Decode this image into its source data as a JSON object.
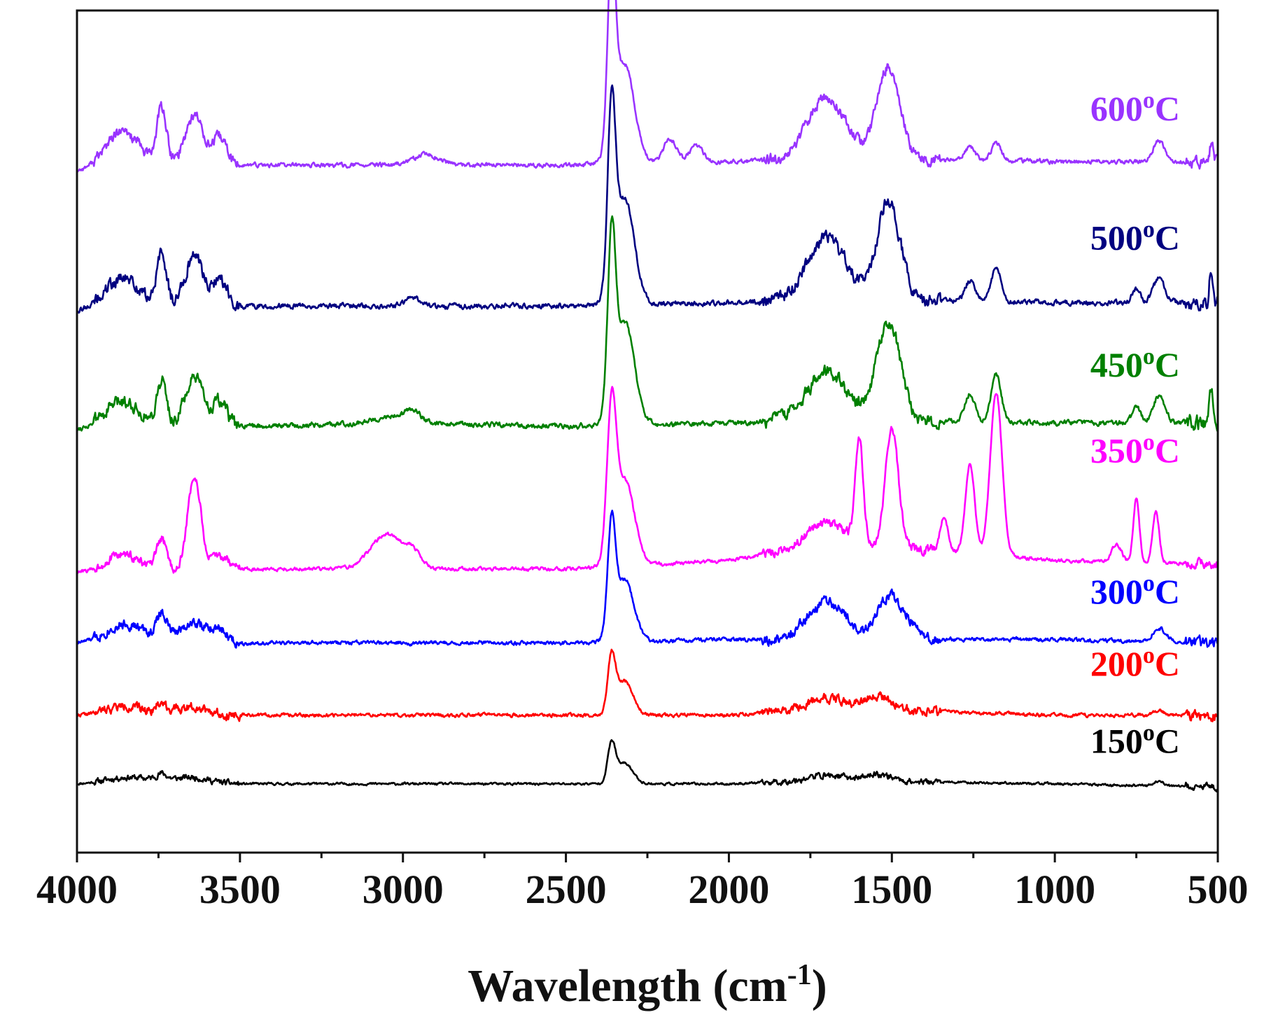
{
  "chart_data": {
    "type": "line",
    "title": "",
    "xlabel": "Wavelength (cm",
    "xlabel_superscript": "-1",
    "xlabel_suffix": ")",
    "ylabel": "",
    "xlim": [
      4000,
      500
    ],
    "x_reversed": true,
    "xticks": [
      4000,
      3500,
      3000,
      2500,
      2000,
      1500,
      1000,
      500
    ],
    "ylim": [
      -0.4,
      4.5
    ],
    "y_axis_visible": false,
    "grid": false,
    "legend": "inline labels at right end of each trace",
    "series": [
      {
        "name": "150oC",
        "label_main": "150",
        "label_sup": "o",
        "label_suffix": "C",
        "color": "#000000",
        "label_y": 0.18,
        "noise": 0.012,
        "seed": 11,
        "baseline": [
          [
            4000,
            0.0
          ],
          [
            3750,
            0.03
          ],
          [
            3500,
            0.0
          ],
          [
            2500,
            0.0
          ],
          [
            2000,
            0.0
          ],
          [
            1700,
            0.02
          ],
          [
            1000,
            0.0
          ],
          [
            500,
            -0.02
          ]
        ],
        "peaks": [
          [
            3860,
            0.02,
            50
          ],
          [
            3740,
            0.03,
            15
          ],
          [
            3640,
            0.02,
            40
          ],
          [
            2360,
            0.22,
            12
          ],
          [
            2320,
            0.12,
            25
          ],
          [
            1700,
            0.03,
            60
          ],
          [
            1540,
            0.04,
            40
          ],
          [
            680,
            0.03,
            15
          ]
        ]
      },
      {
        "name": "200oC",
        "label_main": "200",
        "label_sup": "o",
        "label_suffix": "C",
        "color": "#ff0000",
        "label_y": 0.63,
        "noise": 0.018,
        "seed": 22,
        "baseline": [
          [
            4000,
            0.4
          ],
          [
            3750,
            0.42
          ],
          [
            3500,
            0.4
          ],
          [
            2500,
            0.4
          ],
          [
            2000,
            0.4
          ],
          [
            1700,
            0.44
          ],
          [
            1000,
            0.4
          ],
          [
            500,
            0.4
          ]
        ],
        "peaks": [
          [
            3860,
            0.04,
            50
          ],
          [
            3740,
            0.05,
            15
          ],
          [
            3640,
            0.04,
            40
          ],
          [
            2360,
            0.32,
            12
          ],
          [
            2320,
            0.2,
            25
          ],
          [
            1700,
            0.06,
            60
          ],
          [
            1540,
            0.08,
            40
          ],
          [
            680,
            0.03,
            15
          ]
        ]
      },
      {
        "name": "300oC",
        "label_main": "300",
        "label_sup": "o",
        "label_suffix": "C",
        "color": "#0000ff",
        "label_y": 1.05,
        "noise": 0.02,
        "seed": 33,
        "baseline": [
          [
            4000,
            0.82
          ],
          [
            3800,
            0.86
          ],
          [
            3500,
            0.82
          ],
          [
            2500,
            0.82
          ],
          [
            2000,
            0.84
          ],
          [
            1600,
            0.84
          ],
          [
            1000,
            0.84
          ],
          [
            500,
            0.82
          ]
        ],
        "peaks": [
          [
            3860,
            0.08,
            50
          ],
          [
            3740,
            0.14,
            15
          ],
          [
            3640,
            0.1,
            40
          ],
          [
            3560,
            0.06,
            20
          ],
          [
            2360,
            0.62,
            12
          ],
          [
            2320,
            0.36,
            28
          ],
          [
            1700,
            0.22,
            60
          ],
          [
            1510,
            0.24,
            35
          ],
          [
            1450,
            0.08,
            30
          ],
          [
            680,
            0.08,
            20
          ]
        ]
      },
      {
        "name": "350oC",
        "label_main": "350",
        "label_sup": "o",
        "label_suffix": "C",
        "color": "#ff00ff",
        "label_y": 1.87,
        "noise": 0.018,
        "seed": 44,
        "baseline": [
          [
            4000,
            1.23
          ],
          [
            3500,
            1.25
          ],
          [
            3200,
            1.25
          ],
          [
            2500,
            1.25
          ],
          [
            2000,
            1.3
          ],
          [
            1700,
            1.4
          ],
          [
            1300,
            1.35
          ],
          [
            1000,
            1.3
          ],
          [
            500,
            1.28
          ]
        ],
        "peaks": [
          [
            3860,
            0.1,
            50
          ],
          [
            3740,
            0.18,
            15
          ],
          [
            3640,
            0.55,
            20
          ],
          [
            3560,
            0.08,
            25
          ],
          [
            3050,
            0.2,
            50
          ],
          [
            2970,
            0.08,
            25
          ],
          [
            2360,
            0.82,
            14
          ],
          [
            2320,
            0.5,
            30
          ],
          [
            1700,
            0.12,
            60
          ],
          [
            1600,
            0.6,
            12
          ],
          [
            1500,
            0.7,
            20
          ],
          [
            1340,
            0.2,
            12
          ],
          [
            1260,
            0.52,
            14
          ],
          [
            1180,
            0.95,
            18
          ],
          [
            810,
            0.1,
            15
          ],
          [
            750,
            0.38,
            9
          ],
          [
            690,
            0.3,
            10
          ]
        ]
      },
      {
        "name": "450oC",
        "label_main": "450",
        "label_sup": "o",
        "label_suffix": "C",
        "color": "#008000",
        "label_y": 2.37,
        "noise": 0.026,
        "seed": 55,
        "baseline": [
          [
            4000,
            2.06
          ],
          [
            3500,
            2.08
          ],
          [
            3000,
            2.1
          ],
          [
            2500,
            2.08
          ],
          [
            2000,
            2.1
          ],
          [
            1600,
            2.12
          ],
          [
            1000,
            2.1
          ],
          [
            500,
            2.1
          ]
        ],
        "peaks": [
          [
            3860,
            0.16,
            55
          ],
          [
            3740,
            0.26,
            15
          ],
          [
            3640,
            0.28,
            30
          ],
          [
            3560,
            0.14,
            20
          ],
          [
            3030,
            0.04,
            60
          ],
          [
            2970,
            0.06,
            20
          ],
          [
            2360,
            0.95,
            12
          ],
          [
            2320,
            0.6,
            30
          ],
          [
            1700,
            0.28,
            60
          ],
          [
            1510,
            0.58,
            35
          ],
          [
            1260,
            0.16,
            15
          ],
          [
            1180,
            0.28,
            15
          ],
          [
            750,
            0.1,
            12
          ],
          [
            680,
            0.16,
            18
          ],
          [
            520,
            0.18,
            6
          ]
        ]
      },
      {
        "name": "500oC",
        "label_main": "500",
        "label_sup": "o",
        "label_suffix": "C",
        "color": "#000080",
        "label_y": 3.11,
        "noise": 0.026,
        "seed": 66,
        "baseline": [
          [
            4000,
            2.75
          ],
          [
            3500,
            2.78
          ],
          [
            3000,
            2.78
          ],
          [
            2500,
            2.78
          ],
          [
            2000,
            2.8
          ],
          [
            1600,
            2.82
          ],
          [
            1000,
            2.8
          ],
          [
            500,
            2.8
          ]
        ],
        "peaks": [
          [
            3860,
            0.18,
            55
          ],
          [
            3740,
            0.3,
            15
          ],
          [
            3640,
            0.3,
            30
          ],
          [
            3560,
            0.16,
            20
          ],
          [
            2970,
            0.05,
            25
          ],
          [
            2360,
            1.0,
            12
          ],
          [
            2320,
            0.62,
            30
          ],
          [
            1700,
            0.36,
            60
          ],
          [
            1510,
            0.58,
            35
          ],
          [
            1260,
            0.12,
            15
          ],
          [
            1180,
            0.2,
            15
          ],
          [
            750,
            0.08,
            12
          ],
          [
            680,
            0.14,
            18
          ],
          [
            520,
            0.2,
            6
          ]
        ]
      },
      {
        "name": "600oC",
        "label_main": "600",
        "label_sup": "o",
        "label_suffix": "C",
        "color": "#9933ff",
        "label_y": 3.86,
        "noise": 0.022,
        "seed": 77,
        "baseline": [
          [
            4000,
            3.56
          ],
          [
            3500,
            3.6
          ],
          [
            3000,
            3.6
          ],
          [
            2500,
            3.6
          ],
          [
            2000,
            3.62
          ],
          [
            1600,
            3.64
          ],
          [
            1000,
            3.62
          ],
          [
            500,
            3.62
          ]
        ],
        "peaks": [
          [
            3860,
            0.22,
            55
          ],
          [
            3740,
            0.34,
            15
          ],
          [
            3640,
            0.3,
            30
          ],
          [
            3560,
            0.16,
            20
          ],
          [
            2930,
            0.06,
            40
          ],
          [
            2360,
            1.05,
            12
          ],
          [
            2320,
            0.58,
            30
          ],
          [
            2180,
            0.14,
            20
          ],
          [
            2100,
            0.1,
            20
          ],
          [
            1700,
            0.36,
            60
          ],
          [
            1510,
            0.54,
            35
          ],
          [
            1260,
            0.08,
            15
          ],
          [
            1180,
            0.1,
            15
          ],
          [
            680,
            0.12,
            18
          ],
          [
            520,
            0.1,
            6
          ]
        ]
      }
    ]
  }
}
